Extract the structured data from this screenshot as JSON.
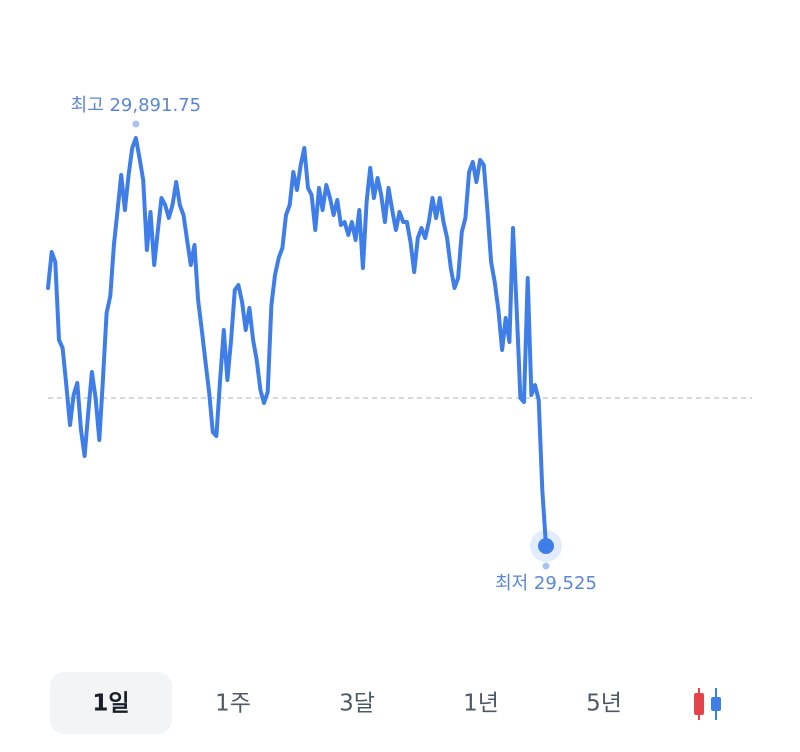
{
  "chart_data": {
    "type": "line",
    "color": "#3f7ee8",
    "values": [
      29756.92,
      29789.28,
      29780.29,
      29710.17,
      29702.98,
      29669.72,
      29633.77,
      29660.73,
      29671.52,
      29629.27,
      29605.9,
      29645.45,
      29681.41,
      29658.04,
      29620.28,
      29674.22,
      29734.44,
      29749.73,
      29795.57,
      29827.03,
      29858.49,
      29827.03,
      29858.49,
      29882.76,
      29891.75,
      29873.77,
      29854.0,
      29791.07,
      29825.23,
      29777.59,
      29809.05,
      29837.82,
      29831.52,
      29819.84,
      29831.52,
      29852.2,
      29831.52,
      29822.54,
      29800.06,
      29777.59,
      29795.57,
      29746.13,
      29719.16,
      29690.4,
      29663.43,
      29627.47,
      29623.88,
      29674.22,
      29719.16,
      29674.22,
      29710.17,
      29755.12,
      29759.61,
      29744.33,
      29719.16,
      29738.94,
      29710.17,
      29692.2,
      29665.23,
      29653.54,
      29663.43,
      29741.63,
      29768.6,
      29783.88,
      29792.87,
      29822.54,
      29831.52,
      29861.19,
      29845.01,
      29867.48,
      29882.76,
      29846.81,
      29840.51,
      29809.05,
      29846.81,
      29827.03,
      29849.5,
      29837.82,
      29822.54,
      29836.02,
      29813.55,
      29816.24,
      29804.56,
      29816.24,
      29800.06,
      29827.03,
      29774.89,
      29834.22,
      29864.78,
      29837.82,
      29855.8,
      29840.51,
      29816.24,
      29846.81,
      29827.03,
      29809.05,
      29825.23,
      29816.24,
      29816.24,
      29798.27,
      29771.3,
      29801.86,
      29810.85,
      29801.86,
      29816.24,
      29837.82,
      29819.84,
      29837.82,
      29816.24,
      29801.86,
      29774.89,
      29756.92,
      29765.91,
      29807.25,
      29819.84,
      29861.19,
      29870.18,
      29852.2,
      29871.98,
      29867.48,
      29827.03,
      29780.29,
      29762.31,
      29737.14,
      29701.18,
      29729.95,
      29708.38,
      29810.85,
      29737.14,
      29658.04,
      29654.44,
      29765.91,
      29660.73,
      29669.72,
      29656.24,
      29575.34,
      29525
    ],
    "reference_line": 29658,
    "annotations": [
      {
        "text": "최고 29,891.75",
        "value": 29891.75
      },
      {
        "text": "최저 29,525",
        "value": 29525
      }
    ]
  },
  "periods": {
    "options": [
      "1일",
      "1주",
      "3달",
      "1년",
      "5년"
    ],
    "selected": "1일"
  }
}
